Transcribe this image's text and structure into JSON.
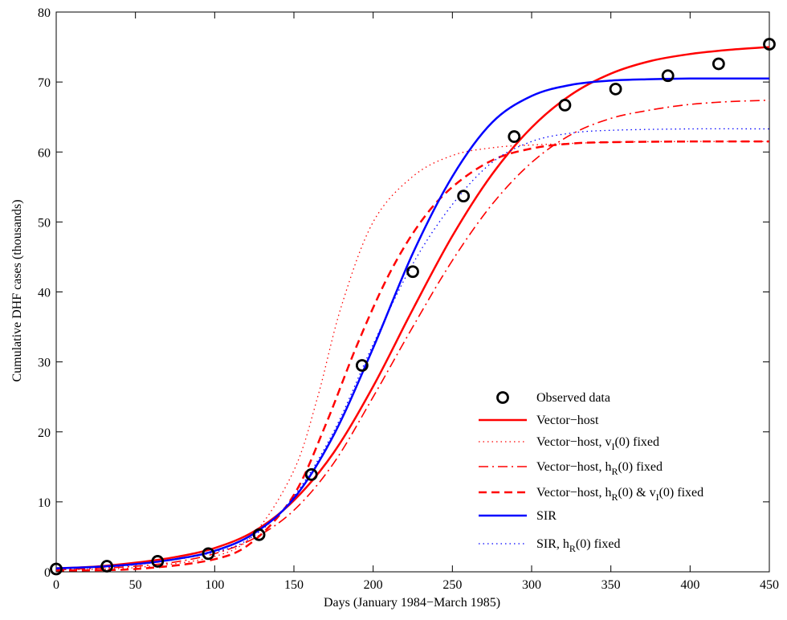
{
  "chart_data": {
    "type": "line",
    "xlabel": "Days (January 1984−March 1985)",
    "ylabel": "Cumulative DHF cases (thousands)",
    "xlim": [
      0,
      450
    ],
    "ylim": [
      0,
      80
    ],
    "xticks": [
      0,
      50,
      100,
      150,
      200,
      250,
      300,
      350,
      400,
      450
    ],
    "yticks": [
      0,
      10,
      20,
      30,
      40,
      50,
      60,
      70,
      80
    ],
    "grid": false,
    "legend_position": "bottom-right",
    "legend": [
      {
        "label": "Observed data",
        "sub": "",
        "rest": ""
      },
      {
        "label": "Vector−host",
        "sub": "",
        "rest": ""
      },
      {
        "label": "Vector−host, v",
        "sub": "I",
        "rest": "(0) fixed"
      },
      {
        "label": "Vector−host, h",
        "sub": "R",
        "rest": "(0) fixed"
      },
      {
        "label": "Vector−host, h",
        "sub": "R",
        "rest": "(0) & v",
        "sub2": "I",
        "rest2": "(0) fixed"
      },
      {
        "label": "SIR",
        "sub": "",
        "rest": ""
      },
      {
        "label": "SIR, h",
        "sub": "R",
        "rest": "(0) fixed"
      }
    ],
    "observed": {
      "color": "#000000",
      "x": [
        0,
        32,
        64,
        96,
        128,
        161,
        193,
        225,
        257,
        289,
        321,
        353,
        386,
        418,
        450
      ],
      "y": [
        0.4,
        0.8,
        1.5,
        2.6,
        5.3,
        13.9,
        29.5,
        42.9,
        53.7,
        62.2,
        66.7,
        69.0,
        70.9,
        72.6,
        75.4
      ]
    },
    "series": [
      {
        "style": "solid",
        "color": "#ff0000",
        "width": 2.5,
        "x": [
          0,
          25,
          50,
          75,
          100,
          125,
          150,
          175,
          200,
          225,
          250,
          275,
          300,
          325,
          350,
          375,
          400,
          425,
          450
        ],
        "y": [
          0.5,
          0.75,
          1.3,
          2.1,
          3.4,
          5.8,
          10.2,
          17.0,
          26.5,
          37.5,
          48.0,
          56.8,
          63.5,
          68.2,
          71.2,
          73.0,
          74.0,
          74.6,
          75.0
        ]
      },
      {
        "style": "dotted",
        "color": "#ff0000",
        "width": 1.3,
        "x": [
          0,
          50,
          100,
          125,
          150,
          165,
          180,
          200,
          225,
          250,
          275,
          300,
          350,
          400,
          450
        ],
        "y": [
          0.3,
          0.6,
          2.2,
          5.5,
          14.5,
          25.0,
          38.0,
          50.0,
          56.5,
          59.5,
          60.6,
          61.0,
          61.4,
          61.5,
          61.5
        ]
      },
      {
        "style": "dashdot",
        "color": "#ff0000",
        "width": 1.6,
        "x": [
          0,
          25,
          50,
          75,
          100,
          125,
          150,
          175,
          200,
          225,
          250,
          275,
          300,
          325,
          350,
          375,
          400,
          425,
          450
        ],
        "y": [
          0.3,
          0.5,
          0.8,
          1.4,
          2.6,
          4.8,
          8.8,
          15.5,
          25.0,
          35.0,
          44.5,
          52.5,
          58.5,
          62.5,
          64.8,
          66.0,
          66.8,
          67.2,
          67.4
        ]
      },
      {
        "style": "dashed",
        "color": "#ff0000",
        "width": 2.5,
        "x": [
          0,
          50,
          100,
          125,
          150,
          170,
          190,
          210,
          230,
          250,
          275,
          300,
          325,
          350,
          400,
          450
        ],
        "y": [
          0.2,
          0.4,
          1.8,
          4.5,
          11.0,
          21.0,
          32.5,
          42.5,
          50.0,
          55.0,
          58.8,
          60.5,
          61.2,
          61.4,
          61.5,
          61.5
        ]
      },
      {
        "style": "solid",
        "color": "#0000ff",
        "width": 2.5,
        "x": [
          0,
          25,
          50,
          75,
          100,
          125,
          150,
          175,
          200,
          225,
          250,
          275,
          300,
          325,
          350,
          375,
          400,
          425,
          450
        ],
        "y": [
          0.5,
          0.7,
          1.1,
          1.8,
          3.0,
          5.5,
          10.5,
          19.5,
          32.0,
          45.5,
          56.5,
          64.2,
          68.0,
          69.6,
          70.2,
          70.4,
          70.5,
          70.5,
          70.5
        ]
      },
      {
        "style": "dotted",
        "color": "#0000ff",
        "width": 1.3,
        "x": [
          0,
          50,
          100,
          125,
          150,
          175,
          200,
          225,
          250,
          275,
          300,
          325,
          350,
          400,
          450
        ],
        "y": [
          0.4,
          1.0,
          2.8,
          5.2,
          10.8,
          20.0,
          32.5,
          44.0,
          52.5,
          58.5,
          61.5,
          62.7,
          63.1,
          63.3,
          63.3
        ]
      }
    ]
  }
}
